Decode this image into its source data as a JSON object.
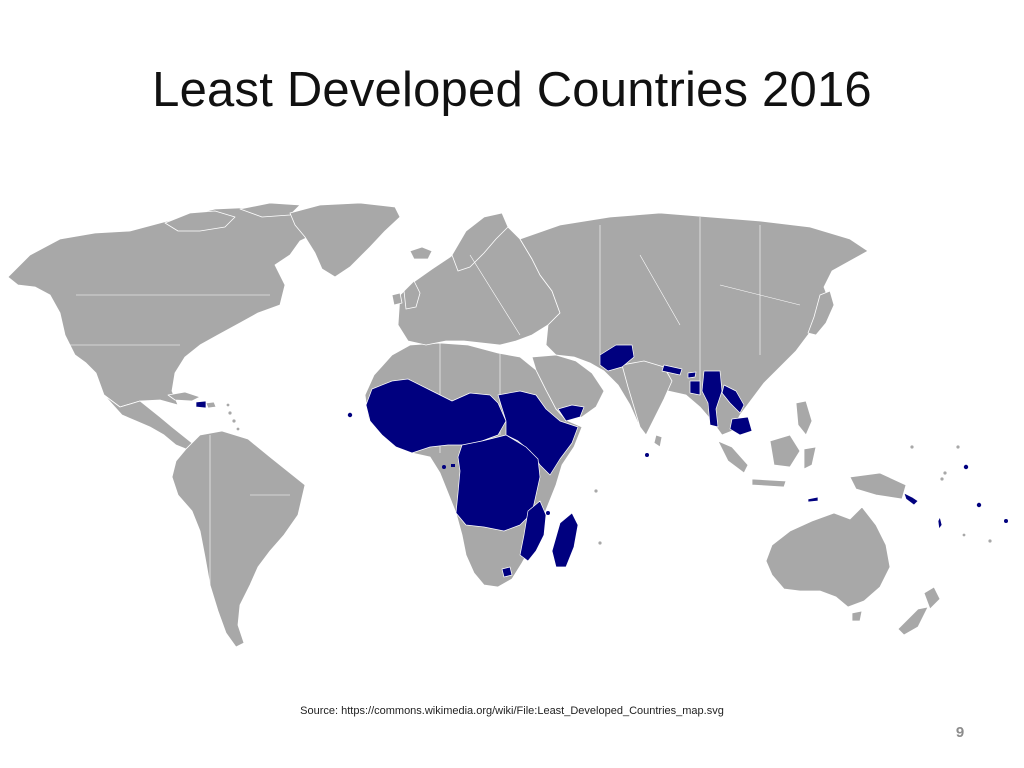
{
  "slide": {
    "title": "Least Developed Countries 2016",
    "source": "Source: https://commons.wikimedia.org/wiki/File:Least_Developed_Countries_map.svg",
    "page_number": "9"
  },
  "map": {
    "land_color": "#a8a8a8",
    "ldc_color": "#00007f",
    "border_color": "#ffffff",
    "background_color": "#ffffff"
  }
}
